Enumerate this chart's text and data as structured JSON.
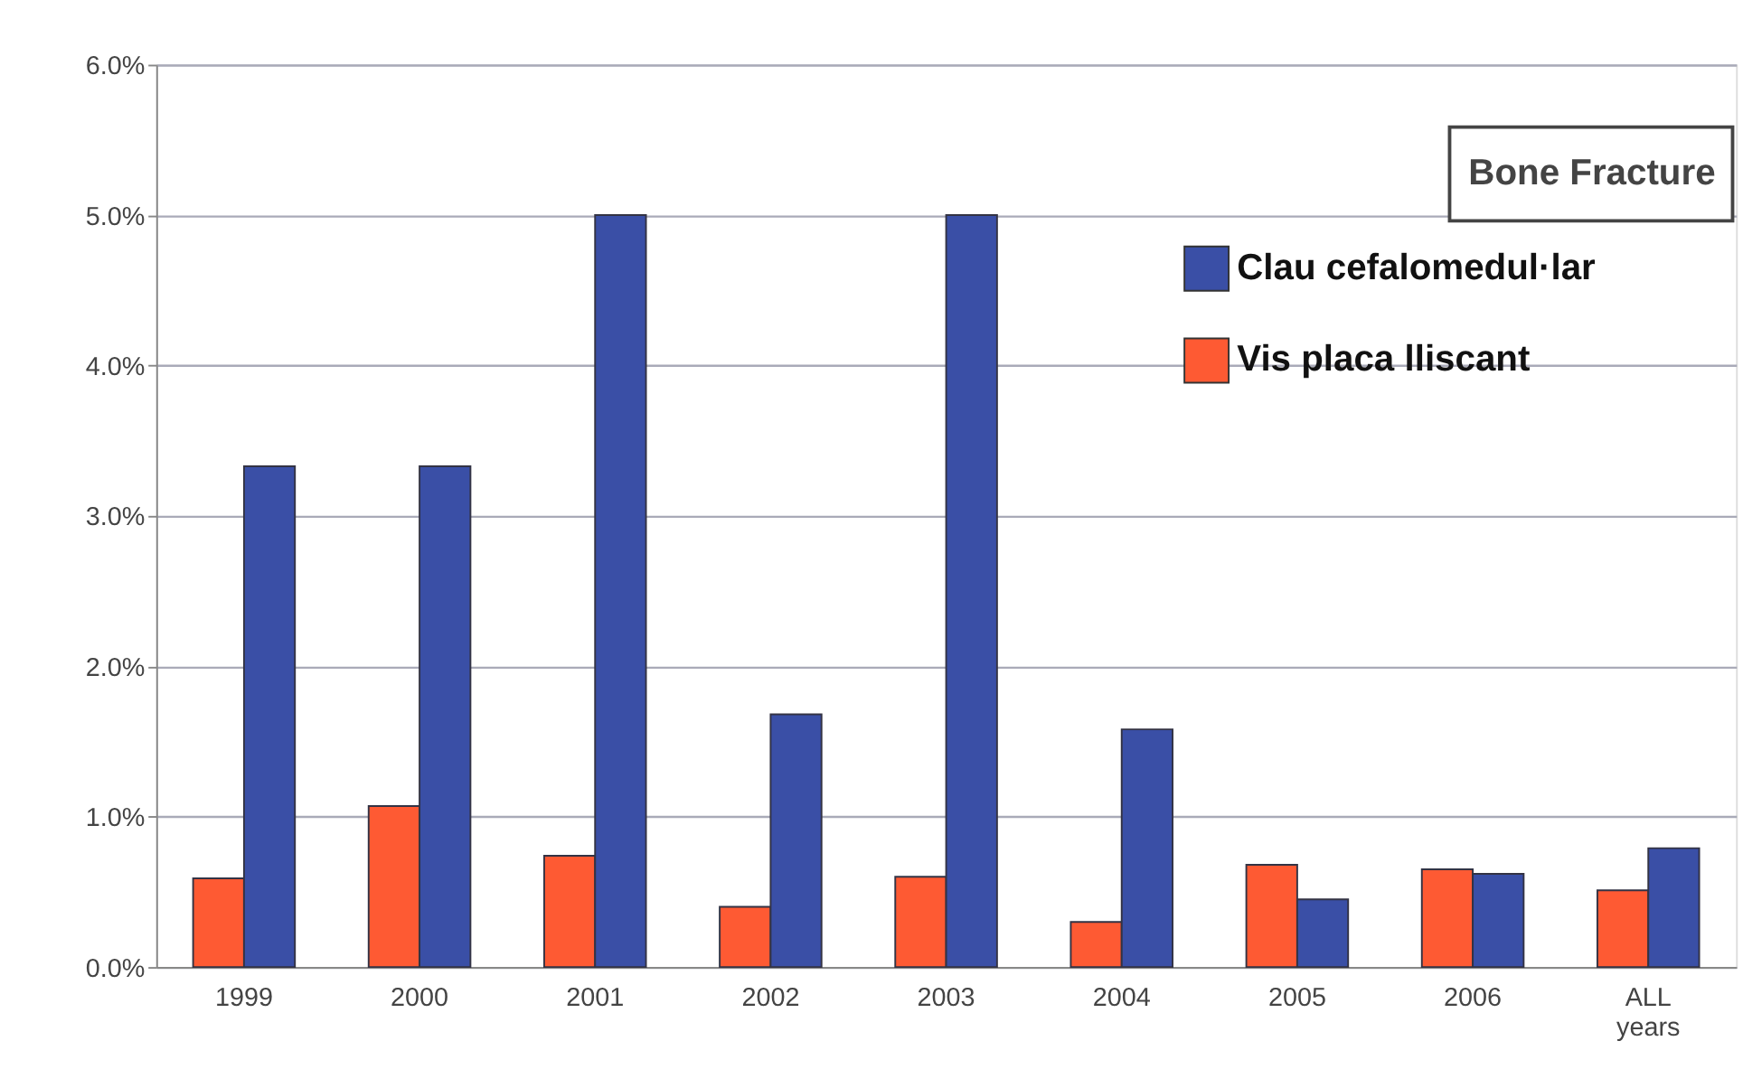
{
  "chart_data": {
    "type": "bar",
    "title": "Bone Fracture",
    "categories": [
      "1999",
      "2000",
      "2001",
      "2002",
      "2003",
      "2004",
      "2005",
      "2006",
      "ALL years"
    ],
    "series": [
      {
        "name": "Vis placa lliscant",
        "color": "#fe5a33",
        "values": [
          0.59,
          1.07,
          0.74,
          0.4,
          0.6,
          0.3,
          0.68,
          0.65,
          0.51
        ]
      },
      {
        "name": "Clau cefalomedul·lar",
        "color": "#3a4fa6",
        "values": [
          3.33,
          3.33,
          5.0,
          1.68,
          5.0,
          1.58,
          0.45,
          0.62,
          0.79
        ]
      }
    ],
    "ylim": [
      0,
      6
    ],
    "yticks": [
      {
        "value": 0,
        "label": "0.0%"
      },
      {
        "value": 1,
        "label": "1.0%"
      },
      {
        "value": 2,
        "label": "2.0%"
      },
      {
        "value": 3,
        "label": "3.0%"
      },
      {
        "value": 4,
        "label": "4.0%"
      },
      {
        "value": 5,
        "label": "5.0%"
      },
      {
        "value": 6,
        "label": "6.0%"
      }
    ],
    "grid": "y",
    "legend": "top right"
  }
}
